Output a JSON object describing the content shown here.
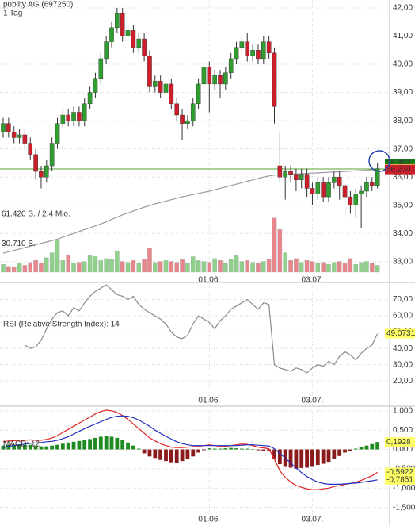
{
  "chart_data": [
    {
      "type": "candlestick",
      "title": "publity AG (697250)",
      "subtitle": "1 Tag",
      "open": [
        37.6,
        37.9,
        37.6,
        37.4,
        37.5,
        37.2,
        36.8,
        36.2,
        36.0,
        36.4,
        37.2,
        37.9,
        38.2,
        38.0,
        38.3,
        38.0,
        38.6,
        39.0,
        39.5,
        40.2,
        40.8,
        41.3,
        41.8,
        41.0,
        41.2,
        40.6,
        40.9,
        40.3,
        39.2,
        39.4,
        39.0,
        39.3,
        38.6,
        38.2,
        37.9,
        38.0,
        38.6,
        39.3,
        39.9,
        39.3,
        39.6,
        39.3,
        39.7,
        40.2,
        40.6,
        40.8,
        40.3,
        40.5,
        40.2,
        40.8,
        40.4,
        36.4,
        36.0,
        36.2,
        36.1,
        35.9,
        36.1,
        35.6,
        35.4,
        35.8,
        35.3,
        35.8,
        36.0,
        35.7,
        35.3,
        35.0,
        35.4,
        35.5,
        35.8,
        35.7
      ],
      "high": [
        38.1,
        38.1,
        37.8,
        37.7,
        37.7,
        37.4,
        37.0,
        36.4,
        36.6,
        37.4,
        38.1,
        38.4,
        38.4,
        38.5,
        38.5,
        38.8,
        39.2,
        39.7,
        40.4,
        41.0,
        41.5,
        42.0,
        42.0,
        41.4,
        41.4,
        41.1,
        41.1,
        40.5,
        39.6,
        39.6,
        39.5,
        39.5,
        38.8,
        38.4,
        38.2,
        38.8,
        39.5,
        40.1,
        40.1,
        39.8,
        39.8,
        39.9,
        40.4,
        40.8,
        41.0,
        41.1,
        40.7,
        40.7,
        41.0,
        41.0,
        40.6,
        37.6,
        36.4,
        36.4,
        36.3,
        36.3,
        36.3,
        35.8,
        36.0,
        36.0,
        36.0,
        36.2,
        36.2,
        35.9,
        35.5,
        35.6,
        35.7,
        36.0,
        36.0,
        36.5
      ],
      "low": [
        37.4,
        37.4,
        37.2,
        37.2,
        37.0,
        36.6,
        35.9,
        35.6,
        35.8,
        36.2,
        37.0,
        37.7,
        37.8,
        37.8,
        37.8,
        37.8,
        38.4,
        38.8,
        39.3,
        40.0,
        40.6,
        41.1,
        40.8,
        40.8,
        40.4,
        40.4,
        40.1,
        39.0,
        39.0,
        38.8,
        38.8,
        38.4,
        38.0,
        37.3,
        37.7,
        37.8,
        38.4,
        39.1,
        38.3,
        39.1,
        38.8,
        39.1,
        39.5,
        40.0,
        40.4,
        40.1,
        40.1,
        40.0,
        40.0,
        40.2,
        37.9,
        35.8,
        35.2,
        35.8,
        35.5,
        35.6,
        35.3,
        35.0,
        35.2,
        35.1,
        35.1,
        35.6,
        35.2,
        34.6,
        34.7,
        34.6,
        34.2,
        35.3,
        35.5,
        35.6
      ],
      "close": [
        37.9,
        37.6,
        37.4,
        37.5,
        37.2,
        36.8,
        36.2,
        36.0,
        36.4,
        37.2,
        37.9,
        38.2,
        38.0,
        38.3,
        38.0,
        38.6,
        39.0,
        39.5,
        40.2,
        40.8,
        41.3,
        41.8,
        41.0,
        41.2,
        40.6,
        40.9,
        40.3,
        39.2,
        39.4,
        39.0,
        39.3,
        38.6,
        38.2,
        37.9,
        38.0,
        38.6,
        39.3,
        39.9,
        39.3,
        39.6,
        39.3,
        39.7,
        40.2,
        40.6,
        40.8,
        40.3,
        40.5,
        40.2,
        40.8,
        40.4,
        38.5,
        36.0,
        36.2,
        36.1,
        35.9,
        36.1,
        35.6,
        35.4,
        35.8,
        35.3,
        35.8,
        36.0,
        35.7,
        35.3,
        35.0,
        35.4,
        35.5,
        35.8,
        35.7,
        36.3
      ],
      "up_color": "#2f9e2f",
      "down_color": "#cc1e2b",
      "series": [
        {
          "color": "#9a9a9a",
          "values": [
            33.3,
            33.35,
            33.4,
            33.45,
            33.5,
            33.55,
            33.6,
            33.65,
            33.7,
            33.75,
            33.8,
            33.87,
            33.94,
            34.0,
            34.07,
            34.14,
            34.2,
            34.27,
            34.34,
            34.42,
            34.5,
            34.58,
            34.66,
            34.73,
            34.8,
            34.87,
            34.93,
            34.99,
            35.05,
            35.1,
            35.15,
            35.2,
            35.25,
            35.3,
            35.34,
            35.38,
            35.42,
            35.46,
            35.5,
            35.55,
            35.6,
            35.65,
            35.7,
            35.75,
            35.8,
            35.85,
            35.9,
            35.95,
            36.0,
            36.04,
            36.07,
            36.08,
            36.09,
            36.1,
            36.11,
            36.12,
            36.13,
            36.14,
            36.15,
            36.16,
            36.17,
            36.18,
            36.19,
            36.2,
            36.21,
            36.22,
            36.23,
            36.24,
            36.26,
            36.28
          ]
        }
      ],
      "ylim": [
        32.63,
        42.28
      ],
      "yticks": [
        {
          "value": 42,
          "label": "42,00"
        },
        {
          "value": 41,
          "label": "41,00"
        },
        {
          "value": 40,
          "label": "40,00"
        },
        {
          "value": 39,
          "label": "39,00"
        },
        {
          "value": 38,
          "label": "38,00"
        },
        {
          "value": 37,
          "label": "37,00"
        },
        {
          "value": 36,
          "label": "36,00"
        },
        {
          "value": 35,
          "label": "35,00"
        },
        {
          "value": 34,
          "label": "34,00"
        },
        {
          "value": 33,
          "label": "33,00"
        }
      ],
      "xticks": [
        {
          "value": 38,
          "label": "01.06."
        },
        {
          "value": 57,
          "label": "03.07."
        }
      ],
      "hline": {
        "value": 36.2887,
        "color": "#5aa02c"
      },
      "price_labels": [
        {
          "value": 36.482,
          "label": "36,482",
          "color": "#1a7a1a",
          "text_color": "#ffffff"
        },
        {
          "value": 36.2887,
          "label": "36,2887",
          "color": "#ffff66",
          "text_color": "#000000"
        },
        {
          "value": 36.27,
          "label": "36,270",
          "color": "#cc1e2b",
          "text_color": "#ffffff"
        }
      ],
      "grid": true
    },
    {
      "type": "bar",
      "values": [
        8000,
        6000,
        5000,
        9000,
        7000,
        10000,
        12000,
        9000,
        15000,
        20000,
        33000,
        12000,
        18000,
        9000,
        10000,
        11000,
        17000,
        16000,
        12000,
        14000,
        13000,
        22000,
        11000,
        10000,
        12000,
        9000,
        13000,
        25000,
        10000,
        11000,
        12000,
        11000,
        10000,
        13000,
        9000,
        16000,
        12000,
        11000,
        10000,
        14000,
        12000,
        9000,
        13000,
        17000,
        11000,
        12000,
        10000,
        9000,
        11000,
        13000,
        56000,
        44000,
        20000,
        12000,
        14000,
        10000,
        12000,
        11000,
        9000,
        10000,
        8000,
        10000,
        11000,
        9000,
        14000,
        8000,
        10000,
        11000,
        9000,
        7000
      ],
      "up_color": "#8fd18a",
      "down_color": "#e8868c",
      "ylim": [
        0,
        61420
      ],
      "yticks": [
        {
          "value": 61420,
          "label": "61.420 S. / 2,4 Mio."
        },
        {
          "value": 30710,
          "label": "30.710 S."
        }
      ]
    },
    {
      "type": "line",
      "title": "RSI (Relative Strength Index): 14",
      "series": [
        {
          "color": "#8a8a8a",
          "values": [
            null,
            null,
            null,
            null,
            42,
            40,
            41,
            45,
            52,
            58,
            62,
            63,
            60,
            65,
            63,
            68,
            72,
            75,
            77,
            79,
            76,
            73,
            72,
            70,
            72,
            67,
            64,
            62,
            60,
            58,
            55,
            50,
            47,
            46,
            48,
            55,
            60,
            58,
            56,
            52,
            57,
            60,
            64,
            66,
            68,
            70,
            67,
            64,
            68,
            67,
            30,
            28,
            27,
            26,
            28,
            27,
            25,
            28,
            30,
            29,
            32,
            30,
            35,
            38,
            36,
            33,
            37,
            40,
            42,
            49.07
          ]
        }
      ],
      "ylim": [
        4.5,
        80.5
      ],
      "yticks": [
        {
          "value": 70,
          "label": "70,00"
        },
        {
          "value": 60,
          "label": "60,00"
        },
        {
          "value": 50,
          "label": "50,00"
        },
        {
          "value": 40,
          "label": "40,00"
        },
        {
          "value": 30,
          "label": "30,00"
        },
        {
          "value": 20,
          "label": "20,00"
        }
      ],
      "xticks": [
        {
          "value": 38,
          "label": "01.06."
        },
        {
          "value": 57,
          "label": "03.07."
        }
      ],
      "price_labels": [
        {
          "value": 49.0731,
          "label": "49,0731",
          "color": "#ffff66",
          "text_color": "#000000"
        }
      ],
      "grid": true
    },
    {
      "type": "macd",
      "title": "MACD: 12",
      "histogram": [
        0.1,
        0.12,
        0.12,
        0.13,
        0.12,
        0.12,
        0.1,
        0.08,
        0.08,
        0.1,
        0.12,
        0.15,
        0.18,
        0.2,
        0.22,
        0.25,
        0.27,
        0.3,
        0.33,
        0.35,
        0.33,
        0.3,
        0.24,
        0.18,
        0.1,
        0.02,
        -0.1,
        -0.18,
        -0.22,
        -0.27,
        -0.3,
        -0.33,
        -0.35,
        -0.3,
        -0.25,
        -0.18,
        -0.08,
        -0.02,
        0.03,
        0.02,
        0.02,
        0.03,
        0.04,
        0.03,
        0.02,
        0.02,
        0.01,
        -0.02,
        -0.03,
        -0.05,
        -0.25,
        -0.38,
        -0.45,
        -0.47,
        -0.5,
        -0.48,
        -0.47,
        -0.45,
        -0.4,
        -0.37,
        -0.32,
        -0.25,
        -0.17,
        -0.08,
        -0.05,
        0.02,
        0.06,
        0.1,
        0.14,
        0.1928
      ],
      "up_color": "#1f8a1f",
      "down_color": "#8b1a1a",
      "series": [
        {
          "color": "#e02020",
          "values": [
            0.2,
            0.22,
            0.23,
            0.24,
            0.24,
            0.25,
            0.24,
            0.24,
            0.26,
            0.3,
            0.36,
            0.44,
            0.52,
            0.6,
            0.68,
            0.76,
            0.84,
            0.92,
            0.98,
            1.02,
            1.0,
            0.96,
            0.88,
            0.78,
            0.66,
            0.54,
            0.42,
            0.3,
            0.22,
            0.15,
            0.1,
            0.06,
            0.05,
            0.05,
            0.06,
            0.07,
            0.08,
            0.1,
            0.12,
            0.1,
            0.08,
            0.08,
            0.1,
            0.12,
            0.14,
            0.13,
            0.1,
            0.06,
            0.04,
            0.02,
            -0.25,
            -0.55,
            -0.72,
            -0.84,
            -0.93,
            -0.98,
            -1.02,
            -1.04,
            -1.04,
            -1.02,
            -1.0,
            -0.96,
            -0.94,
            -0.9,
            -0.88,
            -0.85,
            -0.8,
            -0.74,
            -0.68,
            -0.5922
          ]
        },
        {
          "color": "#2030c0",
          "values": [
            0.05,
            0.08,
            0.1,
            0.12,
            0.14,
            0.16,
            0.17,
            0.18,
            0.2,
            0.21,
            0.24,
            0.28,
            0.33,
            0.4,
            0.47,
            0.54,
            0.6,
            0.66,
            0.72,
            0.78,
            0.83,
            0.86,
            0.87,
            0.86,
            0.82,
            0.76,
            0.68,
            0.6,
            0.5,
            0.42,
            0.34,
            0.27,
            0.2,
            0.15,
            0.12,
            0.1,
            0.1,
            0.1,
            0.1,
            0.1,
            0.1,
            0.1,
            0.1,
            0.1,
            0.11,
            0.12,
            0.12,
            0.11,
            0.1,
            0.09,
            0.02,
            -0.1,
            -0.22,
            -0.35,
            -0.48,
            -0.6,
            -0.7,
            -0.78,
            -0.84,
            -0.88,
            -0.9,
            -0.9,
            -0.9,
            -0.89,
            -0.88,
            -0.87,
            -0.85,
            -0.83,
            -0.81,
            -0.7851
          ]
        }
      ],
      "ylim": [
        -1.98,
        1.12
      ],
      "yticks": [
        {
          "value": 1,
          "label": "1,000"
        },
        {
          "value": 0.5,
          "label": "0,500"
        },
        {
          "value": 0,
          "label": "0,000"
        },
        {
          "value": -0.5,
          "label": "-0,500"
        },
        {
          "value": -1,
          "label": "-1,000"
        },
        {
          "value": -1.5,
          "label": "-1,500"
        }
      ],
      "xticks": [
        {
          "value": 38,
          "label": "01.06."
        },
        {
          "value": 57,
          "label": "03.07."
        }
      ],
      "price_labels": [
        {
          "value": 0.1928,
          "label": "0,1928",
          "color": "#ffff66",
          "text_color": "#000000"
        },
        {
          "value": -0.5922,
          "label": "-0,5922",
          "color": "#ffff66",
          "text_color": "#000000"
        },
        {
          "value": -0.7851,
          "label": "-0,7851",
          "color": "#ffff66",
          "text_color": "#000000"
        }
      ],
      "grid": true
    }
  ]
}
